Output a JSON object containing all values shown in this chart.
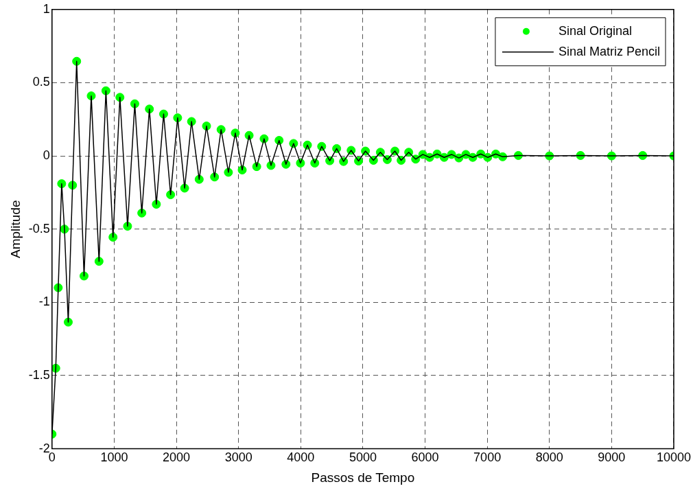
{
  "chart_data": {
    "type": "line",
    "xlabel": "Passos de Tempo",
    "ylabel": "Amplitude",
    "x": [
      0,
      60,
      100,
      155,
      200,
      261,
      330,
      396,
      515,
      631,
      756,
      867,
      981,
      1092,
      1215,
      1331,
      1444,
      1566,
      1678,
      1795,
      1907,
      2020,
      2133,
      2244,
      2367,
      2485,
      2614,
      2719,
      2837,
      2948,
      3059,
      3170,
      3292,
      3411,
      3522,
      3652,
      3763,
      3885,
      3996,
      4108,
      4226,
      4337,
      4467,
      4578,
      4689,
      4811,
      4930,
      5041,
      5170,
      5281,
      5392,
      5515,
      5615,
      5737,
      5848,
      5963,
      6074,
      6193,
      6307,
      6426,
      6544,
      6656,
      6767,
      6896,
      7007,
      7137,
      7248,
      7500,
      8000,
      8500,
      9000,
      9500,
      10000
    ],
    "series": [
      {
        "name": "Sinal Original",
        "type": "scatter",
        "marker": "circle",
        "color": "#00ff00",
        "values": [
          -1.9,
          -1.45,
          -0.9,
          -0.19,
          -0.5,
          -1.135,
          -0.2,
          0.646,
          -0.82,
          0.41,
          -0.72,
          0.445,
          -0.555,
          0.4,
          -0.48,
          0.356,
          -0.39,
          0.32,
          -0.33,
          0.286,
          -0.265,
          0.26,
          -0.22,
          0.235,
          -0.16,
          0.204,
          -0.144,
          0.18,
          -0.112,
          0.156,
          -0.096,
          0.14,
          -0.073,
          0.117,
          -0.065,
          0.106,
          -0.057,
          0.085,
          -0.049,
          0.074,
          -0.049,
          0.065,
          -0.033,
          0.05,
          -0.038,
          0.038,
          -0.035,
          0.033,
          -0.03,
          0.025,
          -0.025,
          0.033,
          -0.03,
          0.025,
          -0.022,
          0.01,
          -0.01,
          0.013,
          -0.01,
          0.01,
          -0.014,
          0.01,
          -0.01,
          0.013,
          -0.01,
          0.013,
          -0.006,
          0.003,
          0,
          0.003,
          0,
          0.003,
          0
        ]
      },
      {
        "name": "Sinal Matriz Pencil",
        "marker": "none",
        "line_style": "solid",
        "color": "#000000",
        "values": [
          -1.9,
          -1.45,
          -0.9,
          -0.19,
          -0.5,
          -1.135,
          -0.2,
          0.646,
          -0.82,
          0.41,
          -0.72,
          0.445,
          -0.555,
          0.4,
          -0.48,
          0.356,
          -0.39,
          0.32,
          -0.33,
          0.286,
          -0.265,
          0.26,
          -0.22,
          0.235,
          -0.16,
          0.204,
          -0.144,
          0.18,
          -0.112,
          0.156,
          -0.096,
          0.14,
          -0.073,
          0.117,
          -0.065,
          0.106,
          -0.057,
          0.085,
          -0.049,
          0.074,
          -0.049,
          0.065,
          -0.033,
          0.05,
          -0.038,
          0.038,
          -0.035,
          0.033,
          -0.03,
          0.025,
          -0.025,
          0.033,
          -0.03,
          0.025,
          -0.022,
          0.01,
          -0.01,
          0.013,
          -0.01,
          0.01,
          -0.014,
          0.01,
          -0.01,
          0.013,
          -0.01,
          0.013,
          -0.006,
          0.003,
          0,
          0.003,
          0,
          0.003,
          0
        ]
      }
    ],
    "xlim": [
      0,
      10000
    ],
    "xticks": [
      0,
      1000,
      2000,
      3000,
      4000,
      5000,
      6000,
      7000,
      8000,
      9000,
      10000
    ],
    "ylim": [
      -2,
      1
    ],
    "yticks": [
      -2,
      -1.5,
      -1,
      -0.5,
      0,
      0.5,
      1
    ],
    "grid": true,
    "legend": "top right"
  }
}
